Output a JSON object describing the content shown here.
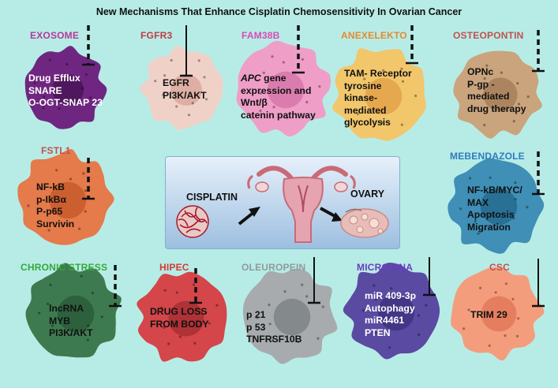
{
  "title": "New Mechanisms That Enhance Cisplatin Chemosensitivity In Ovarian Cancer",
  "center": {
    "left_label": "CISPLATIN",
    "right_label": "OVARY"
  },
  "cells": [
    {
      "id": "exosome",
      "label": "EXOSOME",
      "label_color": "#b5399a",
      "cell_color": "#6f2680",
      "nucleus_color": "#4a1557",
      "text_dark": false,
      "inhibition": "dashed",
      "lines": [
        "Drug Efflux",
        "SNARE",
        "O-OGT-SNAP 23"
      ]
    },
    {
      "id": "fgfr3",
      "label": "FGFR3",
      "label_color": "#c23b44",
      "cell_color": "#f0d1c7",
      "nucleus_color": "#d9a99b",
      "text_dark": true,
      "inhibition": "solid",
      "lines": [
        "EGFR",
        "PI3K/AKT"
      ]
    },
    {
      "id": "fam38b",
      "label": "FAM38B",
      "label_color": "#d84bb4",
      "cell_color": "#ef9ec8",
      "nucleus_color": "#d676a9",
      "text_dark": true,
      "inhibition": "dashed",
      "lines": [
        "APC gene",
        "expression and",
        "Wnt/β",
        "catenin pathway"
      ]
    },
    {
      "id": "anexelekto",
      "label": "ANEXELEKTO",
      "label_color": "#e38a2e",
      "cell_color": "#f2c66b",
      "nucleus_color": "#e3a24a",
      "text_dark": true,
      "inhibition": "dashed",
      "lines": [
        "TAM- Receptor",
        "tyrosine",
        "kinase-",
        "mediated",
        "glycolysis"
      ]
    },
    {
      "id": "osteopontin",
      "label": "OSTEOPONTIN",
      "label_color": "#c2514f",
      "cell_color": "#c9a47d",
      "nucleus_color": "#a7805a",
      "text_dark": true,
      "inhibition": "dashed",
      "lines": [
        "OPNc",
        "P-gp -",
        "mediated",
        "drug therapy"
      ]
    },
    {
      "id": "fstl1",
      "label": "FSTL1",
      "label_color": "#c2514f",
      "cell_color": "#e57a4a",
      "nucleus_color": "#c85a2c",
      "text_dark": true,
      "inhibition": "dashed",
      "lines": [
        "NF-kB",
        "p-IkBα",
        "P-p65",
        "Survivin"
      ]
    },
    {
      "id": "mebendazole",
      "label": "MEBENDAZOLE",
      "label_color": "#2f7bbf",
      "cell_color": "#3f8fb6",
      "nucleus_color": "#266b8f",
      "text_dark": true,
      "inhibition": "dashed",
      "lines": [
        "NF-kB/MYC/",
        "MAX",
        "Apoptosis",
        "Migration"
      ]
    },
    {
      "id": "chronic-stress",
      "label": "CHRONIC STRESS",
      "label_color": "#35a83b",
      "cell_color": "#3e7a4f",
      "nucleus_color": "#2a5c3a",
      "text_dark": true,
      "inhibition": "dashed",
      "lines": [
        "lncRNA",
        "MYB",
        "PI3K/AKT"
      ]
    },
    {
      "id": "hipec",
      "label": "HIPEC",
      "label_color": "#d63a34",
      "cell_color": "#d4464a",
      "nucleus_color": "#a72f33",
      "text_dark": true,
      "inhibition": "dashed",
      "lines": [
        "DRUG LOSS",
        "FROM BODY"
      ]
    },
    {
      "id": "oleuropein",
      "label": "OLEUROPEIN",
      "label_color": "#8e9a9c",
      "cell_color": "#a7abad",
      "nucleus_color": "#7e8385",
      "text_dark": true,
      "inhibition": "solid",
      "lines": [
        "p 21",
        "p 53",
        "TNFRSF10B"
      ]
    },
    {
      "id": "micro-rna",
      "label": "MICRO RNA",
      "label_color": "#6a3bbf",
      "cell_color": "#5a4aa2",
      "nucleus_color": "#3f3280",
      "text_dark": false,
      "inhibition": "solid",
      "lines": [
        "miR 409-3p",
        "Autophagy",
        "miR4461",
        "PTEN"
      ]
    },
    {
      "id": "csc",
      "label": "CSC",
      "label_color": "#c2514f",
      "cell_color": "#f49d7d",
      "nucleus_color": "#e27959",
      "text_dark": true,
      "inhibition": "solid",
      "lines": [
        "TRIM 29"
      ]
    }
  ]
}
